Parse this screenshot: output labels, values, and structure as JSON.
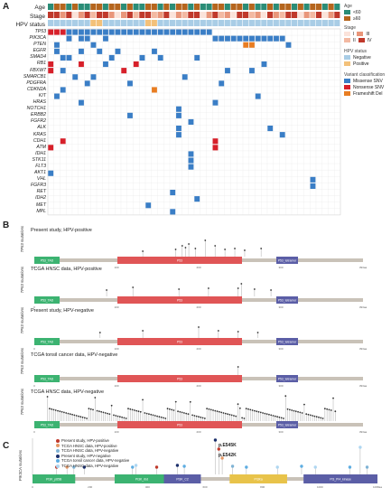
{
  "panelA": {
    "letter": "A",
    "annotations": {
      "age": "Age",
      "stage": "Stage",
      "hpv": "HPV status"
    },
    "genes": [
      "TP53",
      "PIK3CA",
      "PTEN",
      "EGFR",
      "SMAD4",
      "RB1",
      "FBXW7",
      "SMARCB1",
      "PDGFRA",
      "CDKN2A",
      "KIT",
      "HRAS",
      "NOTCH1",
      "ERBB2",
      "FGFR2",
      "ALK",
      "KRAS",
      "CDH1",
      "ATM",
      "IDH1",
      "STK11",
      "FLT3",
      "AKT1",
      "VHL",
      "FGFR3",
      "RET",
      "IDH2",
      "MET",
      "MPL"
    ],
    "legend": {
      "age_title": "Age",
      "age_items": [
        "<60",
        "≥60"
      ],
      "stage_title": "Stage",
      "stage_items": [
        "I",
        "II",
        "III",
        "IV"
      ],
      "hpv_title": "HPV status",
      "hpv_items": [
        "Negative",
        "Positive"
      ],
      "var_title": "Variant classification",
      "var_items": [
        "Missense SNV",
        "Nonsense SNV",
        "Frameshift Del"
      ]
    },
    "colors": {
      "age_lt60": "#2a8d77",
      "age_ge60": "#b5651d",
      "missense": "#3a7ec6",
      "nonsense": "#d7202a",
      "frameshift": "#e87d22",
      "hpv_neg": "#a9cde6",
      "hpv_pos": "#f3c17a"
    }
  },
  "panelB": {
    "letter": "B",
    "ylabel": "TP53 mutations",
    "tracks": [
      {
        "title": "Present study, HPV-positive"
      },
      {
        "title": "TCGA  HNSC data, HPV-positive"
      },
      {
        "title": "Present study, HPV-negative"
      },
      {
        "title": "TCGA  tonsil cancer data, HPV-negative"
      },
      {
        "title": "TCGA  HNSC data, HPV-negative"
      }
    ],
    "domains": [
      "P53_TAD",
      "P53",
      "P53_tetramer"
    ],
    "axis_ticks": [
      "0",
      "100",
      "200",
      "300",
      "393aa"
    ]
  },
  "panelC": {
    "letter": "C",
    "ylabel": "PIK3CA mutations",
    "legend": [
      {
        "label": "Present study, HPV-positive",
        "color": "#c0392b"
      },
      {
        "label": "TCGA HNSC data, HPV-positive",
        "color": "#e59866"
      },
      {
        "label": "TCGA HNSC data, HPV-negative",
        "color": "#7fb3d5"
      },
      {
        "label": "Present study, HPV-negative",
        "color": "#1b2f6b"
      },
      {
        "label": "TCGA tonsil cancer data, HPV-negative",
        "color": "#5dade2"
      },
      {
        "label": "TCGA HNSC data, HPV-negative",
        "color": "#aed6f1"
      }
    ],
    "callouts": [
      "p.E545K",
      "p.E542K"
    ],
    "domains": [
      "PI3K_p85B",
      "PI3K_rbd",
      "PI3K_C2",
      "PI3Ka",
      "PI3_PI4_kinase"
    ],
    "axis_ticks": [
      "0",
      "200",
      "400",
      "600",
      "800",
      "1000",
      "1068aa"
    ]
  }
}
